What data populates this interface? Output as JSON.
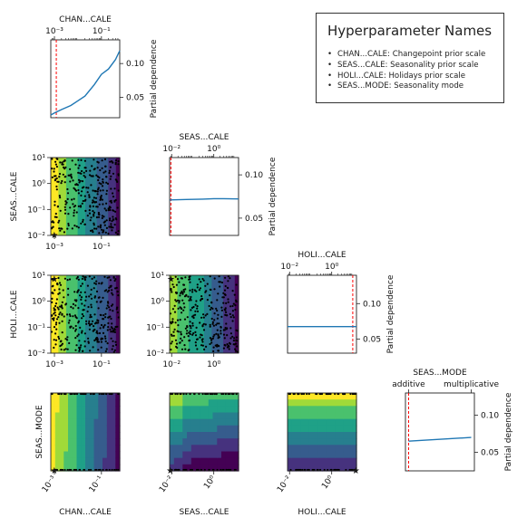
{
  "legend": {
    "title": "Hyperparameter Names",
    "items": [
      "CHAN...CALE: Changepoint prior scale",
      "SEAS...CALE: Seasonality prior scale",
      "HOLI...CALE: Holidays prior scale",
      "SEAS...MODE: Seasonality mode"
    ]
  },
  "colors": {
    "line": "#1f77b4",
    "best_marker": "#ff0000",
    "samples": "#000000",
    "viridis": [
      "#440154",
      "#46327e",
      "#365c8d",
      "#277f8e",
      "#1fa187",
      "#4ac16d",
      "#a0da39",
      "#fde725"
    ]
  },
  "chart_data": [
    {
      "id": "dep-chan",
      "type": "line",
      "xlabel": "CHAN...CALE",
      "ylabel": "Partial dependence",
      "xscale": "log",
      "xlim": [
        0.0007,
        0.6
      ],
      "ylim": [
        0.02,
        0.135
      ],
      "xticks": [
        {
          "v": 0.001,
          "label": "10⁻³"
        },
        {
          "v": 0.1,
          "label": "10⁻¹"
        }
      ],
      "yticks": [
        {
          "v": 0.05,
          "label": "0.05"
        },
        {
          "v": 0.1,
          "label": "0.10"
        }
      ],
      "x": [
        0.0007,
        0.001,
        0.002,
        0.005,
        0.01,
        0.02,
        0.05,
        0.1,
        0.2,
        0.4,
        0.6
      ],
      "y": [
        0.024,
        0.027,
        0.032,
        0.038,
        0.045,
        0.052,
        0.069,
        0.084,
        0.092,
        0.106,
        0.119
      ],
      "best": 0.0012
    },
    {
      "id": "dep-seas",
      "type": "line",
      "xlabel": "SEAS...CALE",
      "ylabel": "Partial dependence",
      "xscale": "log",
      "xlim": [
        0.008,
        15
      ],
      "ylim": [
        0.03,
        0.12
      ],
      "xticks": [
        {
          "v": 0.01,
          "label": "10⁻²"
        },
        {
          "v": 1,
          "label": "10⁰"
        }
      ],
      "yticks": [
        {
          "v": 0.05,
          "label": "0.05"
        },
        {
          "v": 0.1,
          "label": "0.10"
        }
      ],
      "x": [
        0.008,
        0.05,
        0.3,
        1,
        3,
        15
      ],
      "y": [
        0.071,
        0.0715,
        0.072,
        0.0725,
        0.0725,
        0.0722
      ],
      "best": 0.0092
    },
    {
      "id": "dep-holi",
      "type": "line",
      "xlabel": "HOLI...CALE",
      "ylabel": "Partial dependence",
      "xscale": "log",
      "xlim": [
        0.008,
        15
      ],
      "ylim": [
        0.03,
        0.14
      ],
      "xticks": [
        {
          "v": 0.01,
          "label": "10⁻²"
        },
        {
          "v": 1,
          "label": "10⁰"
        }
      ],
      "yticks": [
        {
          "v": 0.05,
          "label": "0.05"
        },
        {
          "v": 0.1,
          "label": "0.10"
        }
      ],
      "x": [
        0.008,
        0.1,
        1,
        15
      ],
      "y": [
        0.0675,
        0.0675,
        0.0675,
        0.0675
      ],
      "best": 10
    },
    {
      "id": "dep-mode",
      "type": "line",
      "xlabel": "SEAS...MODE",
      "ylabel": "Partial dependence",
      "xscale": "category",
      "categories": [
        "additive",
        "multiplicative"
      ],
      "xlim": [
        -0.05,
        1.05
      ],
      "ylim": [
        0.025,
        0.13
      ],
      "xticks": [
        {
          "v": 0,
          "label": "additive"
        },
        {
          "v": 1,
          "label": "multiplicative"
        }
      ],
      "yticks": [
        {
          "v": 0.05,
          "label": "0.05"
        },
        {
          "v": 0.1,
          "label": "0.10"
        }
      ],
      "x": [
        0,
        1
      ],
      "y": [
        0.065,
        0.07
      ],
      "best": 0
    },
    {
      "id": "scatter-seas-chan",
      "type": "scatter",
      "xlabel": "",
      "ylabel": "SEAS...CALE",
      "xticks": [
        {
          "v": 0.001,
          "label": "10⁻³"
        },
        {
          "v": 0.1,
          "label": "10⁻¹"
        }
      ],
      "yticks": [
        {
          "v": 0.01,
          "label": "10⁻²"
        },
        {
          "v": 0.1,
          "label": "10⁻¹"
        },
        {
          "v": 1,
          "label": "10⁰"
        },
        {
          "v": 10,
          "label": "10¹"
        }
      ]
    },
    {
      "id": "scatter-holi-chan",
      "type": "scatter",
      "xlabel": "",
      "ylabel": "HOLI...CALE",
      "xticks": [
        {
          "v": 0.001,
          "label": "10⁻³"
        },
        {
          "v": 0.1,
          "label": "10⁻¹"
        }
      ],
      "yticks": [
        {
          "v": 0.01,
          "label": "10⁻²"
        },
        {
          "v": 0.1,
          "label": "10⁻¹"
        },
        {
          "v": 1,
          "label": "10⁰"
        },
        {
          "v": 10,
          "label": "10¹"
        }
      ]
    },
    {
      "id": "scatter-holi-seas",
      "type": "scatter",
      "xlabel": "",
      "ylabel": "",
      "xticks": [
        {
          "v": 0.01,
          "label": "10⁻²"
        },
        {
          "v": 1,
          "label": "10⁰"
        }
      ],
      "yticks": [
        {
          "v": 0.01,
          "label": "10⁻²"
        },
        {
          "v": 0.1,
          "label": "10⁻¹"
        },
        {
          "v": 1,
          "label": "10⁰"
        },
        {
          "v": 10,
          "label": "10¹"
        }
      ]
    },
    {
      "id": "contour-mode-chan",
      "type": "heatmap",
      "xlabel": "CHAN...CALE",
      "ylabel": "SEAS...MODE",
      "xticks": [
        {
          "v": 0.001,
          "label": "10⁻³"
        },
        {
          "v": 0.1,
          "label": "10⁻¹"
        }
      ]
    },
    {
      "id": "contour-mode-seas",
      "type": "heatmap",
      "xlabel": "SEAS...CALE",
      "ylabel": "",
      "xticks": [
        {
          "v": 0.01,
          "label": "10⁻²"
        },
        {
          "v": 1,
          "label": "10⁰"
        }
      ]
    },
    {
      "id": "contour-mode-holi",
      "type": "heatmap",
      "xlabel": "HOLI...CALE",
      "ylabel": "",
      "xticks": [
        {
          "v": 0.01,
          "label": "10⁻²"
        },
        {
          "v": 1,
          "label": "10⁰"
        }
      ]
    }
  ]
}
